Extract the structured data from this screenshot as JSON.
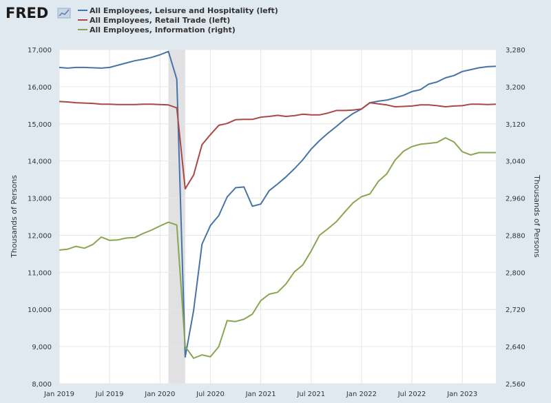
{
  "header": {
    "logo_text": "FRED"
  },
  "chart_data": {
    "type": "line",
    "x_range": [
      "2019-01",
      "2023-05"
    ],
    "x_ticks": [
      {
        "date": "2019-01",
        "label": "Jan 2019"
      },
      {
        "date": "2019-07",
        "label": "Jul 2019"
      },
      {
        "date": "2020-01",
        "label": "Jan 2020"
      },
      {
        "date": "2020-07",
        "label": "Jul 2020"
      },
      {
        "date": "2021-01",
        "label": "Jan 2021"
      },
      {
        "date": "2021-07",
        "label": "Jul 2021"
      },
      {
        "date": "2022-01",
        "label": "Jan 2022"
      },
      {
        "date": "2022-07",
        "label": "Jul 2022"
      },
      {
        "date": "2023-01",
        "label": "Jan 2023"
      }
    ],
    "left_axis": {
      "label": "Thousands of Persons",
      "range": [
        8000,
        17000
      ],
      "ticks": [
        {
          "value": 8000,
          "label": "8,000"
        },
        {
          "value": 9000,
          "label": "9,000"
        },
        {
          "value": 10000,
          "label": "10,000"
        },
        {
          "value": 11000,
          "label": "11,000"
        },
        {
          "value": 12000,
          "label": "12,000"
        },
        {
          "value": 13000,
          "label": "13,000"
        },
        {
          "value": 14000,
          "label": "14,000"
        },
        {
          "value": 15000,
          "label": "15,000"
        },
        {
          "value": 16000,
          "label": "16,000"
        },
        {
          "value": 17000,
          "label": "17,000"
        }
      ]
    },
    "right_axis": {
      "label": "Thousands of Persons",
      "range": [
        2560,
        3280
      ],
      "ticks": [
        {
          "value": 2560,
          "label": "2,560"
        },
        {
          "value": 2640,
          "label": "2,640"
        },
        {
          "value": 2720,
          "label": "2,720"
        },
        {
          "value": 2800,
          "label": "2,800"
        },
        {
          "value": 2880,
          "label": "2,880"
        },
        {
          "value": 2960,
          "label": "2,960"
        },
        {
          "value": 3040,
          "label": "3,040"
        },
        {
          "value": 3120,
          "label": "3,120"
        },
        {
          "value": 3200,
          "label": "3,200"
        },
        {
          "value": 3280,
          "label": "3,280"
        }
      ]
    },
    "recession": {
      "start": "2020-02",
      "end": "2020-04",
      "color": "#e1e1e4"
    },
    "grid": true,
    "legend_placement": "top-left",
    "series": [
      {
        "name": "All Employees, Leisure and Hospitality (left)",
        "axis": "left",
        "color": "#4572a7",
        "x": [
          "2019-01",
          "2019-02",
          "2019-03",
          "2019-04",
          "2019-05",
          "2019-06",
          "2019-07",
          "2019-08",
          "2019-09",
          "2019-10",
          "2019-11",
          "2019-12",
          "2020-01",
          "2020-02",
          "2020-03",
          "2020-04",
          "2020-05",
          "2020-06",
          "2020-07",
          "2020-08",
          "2020-09",
          "2020-10",
          "2020-11",
          "2020-12",
          "2021-01",
          "2021-02",
          "2021-03",
          "2021-04",
          "2021-05",
          "2021-06",
          "2021-07",
          "2021-08",
          "2021-09",
          "2021-10",
          "2021-11",
          "2021-12",
          "2022-01",
          "2022-02",
          "2022-03",
          "2022-04",
          "2022-05",
          "2022-06",
          "2022-07",
          "2022-08",
          "2022-09",
          "2022-10",
          "2022-11",
          "2022-12",
          "2023-01",
          "2023-02",
          "2023-03",
          "2023-04",
          "2023-05"
        ],
        "y": [
          16520,
          16500,
          16520,
          16520,
          16510,
          16500,
          16520,
          16580,
          16640,
          16700,
          16740,
          16790,
          16860,
          16950,
          16200,
          8720,
          9970,
          11760,
          12260,
          12530,
          13030,
          13280,
          13300,
          12780,
          12840,
          13200,
          13380,
          13570,
          13790,
          14030,
          14320,
          14550,
          14750,
          14930,
          15120,
          15280,
          15400,
          15570,
          15610,
          15640,
          15700,
          15770,
          15870,
          15920,
          16070,
          16130,
          16240,
          16300,
          16410,
          16460,
          16510,
          16540,
          16550
        ]
      },
      {
        "name": "All Employees, Retail Trade (left)",
        "axis": "left",
        "color": "#aa4643",
        "x": [
          "2019-01",
          "2019-02",
          "2019-03",
          "2019-04",
          "2019-05",
          "2019-06",
          "2019-07",
          "2019-08",
          "2019-09",
          "2019-10",
          "2019-11",
          "2019-12",
          "2020-01",
          "2020-02",
          "2020-03",
          "2020-04",
          "2020-05",
          "2020-06",
          "2020-07",
          "2020-08",
          "2020-09",
          "2020-10",
          "2020-11",
          "2020-12",
          "2021-01",
          "2021-02",
          "2021-03",
          "2021-04",
          "2021-05",
          "2021-06",
          "2021-07",
          "2021-08",
          "2021-09",
          "2021-10",
          "2021-11",
          "2021-12",
          "2022-01",
          "2022-02",
          "2022-03",
          "2022-04",
          "2022-05",
          "2022-06",
          "2022-07",
          "2022-08",
          "2022-09",
          "2022-10",
          "2022-11",
          "2022-12",
          "2023-01",
          "2023-02",
          "2023-03",
          "2023-04",
          "2023-05"
        ],
        "y": [
          15600,
          15590,
          15570,
          15560,
          15550,
          15530,
          15530,
          15520,
          15520,
          15520,
          15530,
          15530,
          15520,
          15510,
          15430,
          13250,
          13620,
          14440,
          14710,
          14960,
          15010,
          15110,
          15120,
          15120,
          15180,
          15200,
          15230,
          15200,
          15220,
          15260,
          15240,
          15240,
          15290,
          15360,
          15360,
          15370,
          15400,
          15570,
          15540,
          15510,
          15460,
          15470,
          15480,
          15510,
          15510,
          15490,
          15460,
          15480,
          15490,
          15530,
          15530,
          15520,
          15530
        ]
      },
      {
        "name": "All Employees, Information (right)",
        "axis": "right",
        "color": "#89a54e",
        "x": [
          "2019-01",
          "2019-02",
          "2019-03",
          "2019-04",
          "2019-05",
          "2019-06",
          "2019-07",
          "2019-08",
          "2019-09",
          "2019-10",
          "2019-11",
          "2019-12",
          "2020-01",
          "2020-02",
          "2020-03",
          "2020-04",
          "2020-05",
          "2020-06",
          "2020-07",
          "2020-08",
          "2020-09",
          "2020-10",
          "2020-11",
          "2020-12",
          "2021-01",
          "2021-02",
          "2021-03",
          "2021-04",
          "2021-05",
          "2021-06",
          "2021-07",
          "2021-08",
          "2021-09",
          "2021-10",
          "2021-11",
          "2021-12",
          "2022-01",
          "2022-02",
          "2022-03",
          "2022-04",
          "2022-05",
          "2022-06",
          "2022-07",
          "2022-08",
          "2022-09",
          "2022-10",
          "2022-11",
          "2022-12",
          "2023-01",
          "2023-02",
          "2023-03",
          "2023-04",
          "2023-05"
        ],
        "y": [
          2848,
          2850,
          2856,
          2852,
          2860,
          2876,
          2869,
          2870,
          2874,
          2875,
          2884,
          2891,
          2900,
          2908,
          2902,
          2640,
          2615,
          2622,
          2618,
          2640,
          2696,
          2694,
          2699,
          2710,
          2739,
          2753,
          2757,
          2775,
          2801,
          2816,
          2846,
          2880,
          2894,
          2909,
          2930,
          2950,
          2963,
          2969,
          2996,
          3012,
          3042,
          3061,
          3071,
          3076,
          3078,
          3080,
          3090,
          3081,
          3060,
          3053,
          3058,
          3058,
          3058
        ]
      }
    ]
  }
}
